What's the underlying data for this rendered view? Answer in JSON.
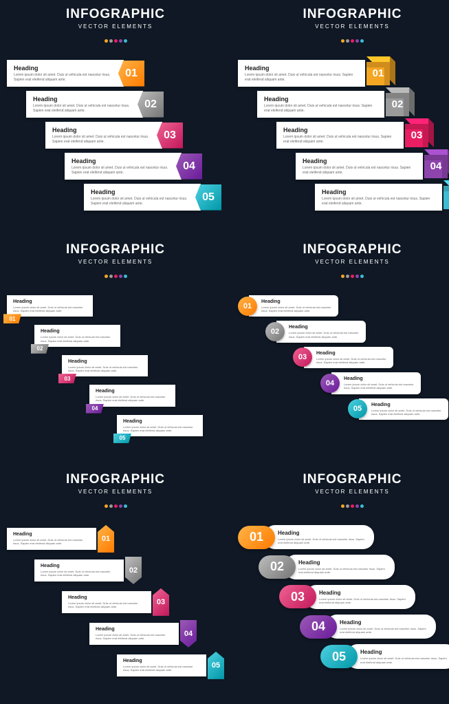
{
  "background": "#0f1824",
  "title": "INFOGRAPHIC",
  "subtitle": "VECTOR ELEMENTS",
  "dot_colors": [
    "#f5a623",
    "#9b9b9b",
    "#e91e63",
    "#8e44ad",
    "#3dbcd4"
  ],
  "heading": "Heading",
  "body": "Lorem ipsum dolor sit amet. Duis ut vehicula est nascetur risus. Sapien erat eleifend aliquam ante.",
  "steps": [
    {
      "num": "01",
      "color": "#f5a623",
      "grad": "linear-gradient(135deg,#ffb347,#ff7b00)"
    },
    {
      "num": "02",
      "color": "#9b9b9b",
      "grad": "linear-gradient(135deg,#bdbdbd,#757575)"
    },
    {
      "num": "03",
      "color": "#e91e63",
      "grad": "linear-gradient(135deg,#f06292,#c2185b)"
    },
    {
      "num": "04",
      "color": "#8e44ad",
      "grad": "linear-gradient(135deg,#9b59b6,#6a1b9a)"
    },
    {
      "num": "05",
      "color": "#3dbcd4",
      "grad": "linear-gradient(135deg,#4dd0e1,#0097a7)"
    }
  ],
  "panels": [
    {
      "id": "p1",
      "badge_shape": "pentagon-right",
      "badge_size": 38
    },
    {
      "id": "p2",
      "badge_shape": "cube-3d",
      "badge_size": 34
    },
    {
      "id": "p3",
      "badge_shape": "tab-bottom-left",
      "badge_size": 14
    },
    {
      "id": "p4",
      "badge_shape": "circle-left",
      "badge_size": 28
    },
    {
      "id": "p5",
      "badge_shape": "arrow-vertical",
      "badge_size": 40
    },
    {
      "id": "p6",
      "badge_shape": "pill-left",
      "badge_size": 34
    }
  ],
  "typography": {
    "title_size": 19,
    "title_weight": 900,
    "subtitle_size": 8,
    "heading_size": 9,
    "body_size": 5
  }
}
